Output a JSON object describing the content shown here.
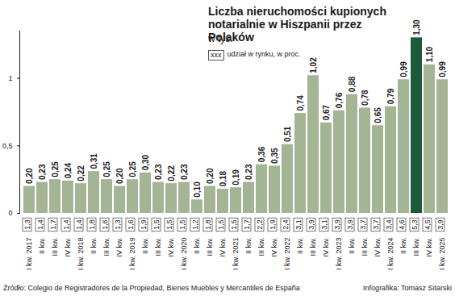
{
  "chart_data": {
    "type": "bar",
    "title": "Liczba nieruchomości kupionych notarialnie w Hiszpanii przez Polaków",
    "subtitle": "w tys.",
    "categories": [
      "I kw. 2017",
      "II kw.",
      "III kw.",
      "IV kw.",
      "I kw. 2018",
      "II kw.",
      "III kw.",
      "IV kw.",
      "I kw. 2019",
      "II kw.",
      "III kw.",
      "IV kw.",
      "I kw. 2020",
      "II kw.",
      "III kw.",
      "IV kw.",
      "I kw. 2021",
      "II kw.",
      "III kw.",
      "IV kw.",
      "I kw. 2022",
      "II kw.",
      "III kw.",
      "IV kw.",
      "I kw. 2023",
      "II kw.",
      "III kw.",
      "IV kw.",
      "I kw. 2024",
      "II kw.",
      "III kw.",
      "IV kw.",
      "I kw. 2025"
    ],
    "values": [
      0.2,
      0.23,
      0.25,
      0.24,
      0.22,
      0.31,
      0.25,
      0.2,
      0.25,
      0.3,
      0.23,
      0.22,
      0.23,
      0.1,
      0.2,
      0.18,
      0.19,
      0.23,
      0.36,
      0.35,
      0.51,
      0.74,
      1.02,
      0.67,
      0.76,
      0.88,
      0.78,
      0.65,
      0.79,
      0.99,
      1.3,
      1.1,
      0.99
    ],
    "value_labels": [
      "0,20",
      "0,23",
      "0,25",
      "0,24",
      "0,22",
      "0,31",
      "0,25",
      "0,20",
      "0,25",
      "0,30",
      "0,23",
      "0,22",
      "0,23",
      "0,10",
      "0,20",
      "0,18",
      "0,19",
      "0,23",
      "0,36",
      "0,35",
      "0,51",
      "0,74",
      "1,02",
      "0,67",
      "0,76",
      "0,88",
      "0,78",
      "0,65",
      "0,79",
      "0,99",
      "1,30",
      "1,10",
      "0,99"
    ],
    "colors": [
      "#a4b596",
      "#a4b596",
      "#a4b596",
      "#a4b596",
      "#a4b596",
      "#a4b596",
      "#a4b596",
      "#a4b596",
      "#a4b596",
      "#a4b596",
      "#a4b596",
      "#a4b596",
      "#a4b596",
      "#a4b596",
      "#a4b596",
      "#a4b596",
      "#a4b596",
      "#a4b596",
      "#a4b596",
      "#a4b596",
      "#a4b596",
      "#a4b596",
      "#a4b596",
      "#a4b596",
      "#a4b596",
      "#a4b596",
      "#a4b596",
      "#a4b596",
      "#a4b596",
      "#a4b596",
      "#1d5a3c",
      "#a4b596",
      "#a4b596"
    ],
    "market_share": {
      "values": [
        1.3,
        1.4,
        1.7,
        1.4,
        1.4,
        1.8,
        1.6,
        1.3,
        1.6,
        1.9,
        1.5,
        1.5,
        1.5,
        1.2,
        1.8,
        1.5,
        1.5,
        1.7,
        2.2,
        1.9,
        2.4,
        3.1,
        3.9,
        3.1,
        3.9,
        3.9,
        3.7,
        3.7,
        3.4,
        4.6,
        5.3,
        4.5,
        3.9
      ],
      "value_labels": [
        "1,3",
        "1,4",
        "1,7",
        "1,4",
        "1,4",
        "1,8",
        "1,6",
        "1,3",
        "1,6",
        "1,9",
        "1,5",
        "1,5",
        "1,5",
        "1,2",
        "1,8",
        "1,5",
        "1,5",
        "1,7",
        "2,2",
        "1,9",
        "2,4",
        "3,1",
        "3,9",
        "3,1",
        "3,9",
        "3,9",
        "3,7",
        "3,7",
        "3,4",
        "4,6",
        "5,3",
        "4,5",
        "3,9"
      ]
    },
    "share_key": {
      "box": "xxx",
      "text": "udział w rynku, w proc."
    },
    "ylim": [
      0,
      1.35
    ],
    "yticks": [
      0,
      {
        "value": 0.5,
        "label": "0,5"
      },
      1
    ],
    "grid": false,
    "data_labels": true,
    "source": "Źródło: Colegio de Registradores de la Propiedad, Bienes Muebles y Mercantiles de España",
    "credit": "Infografika: Tomasz Sitarski"
  }
}
